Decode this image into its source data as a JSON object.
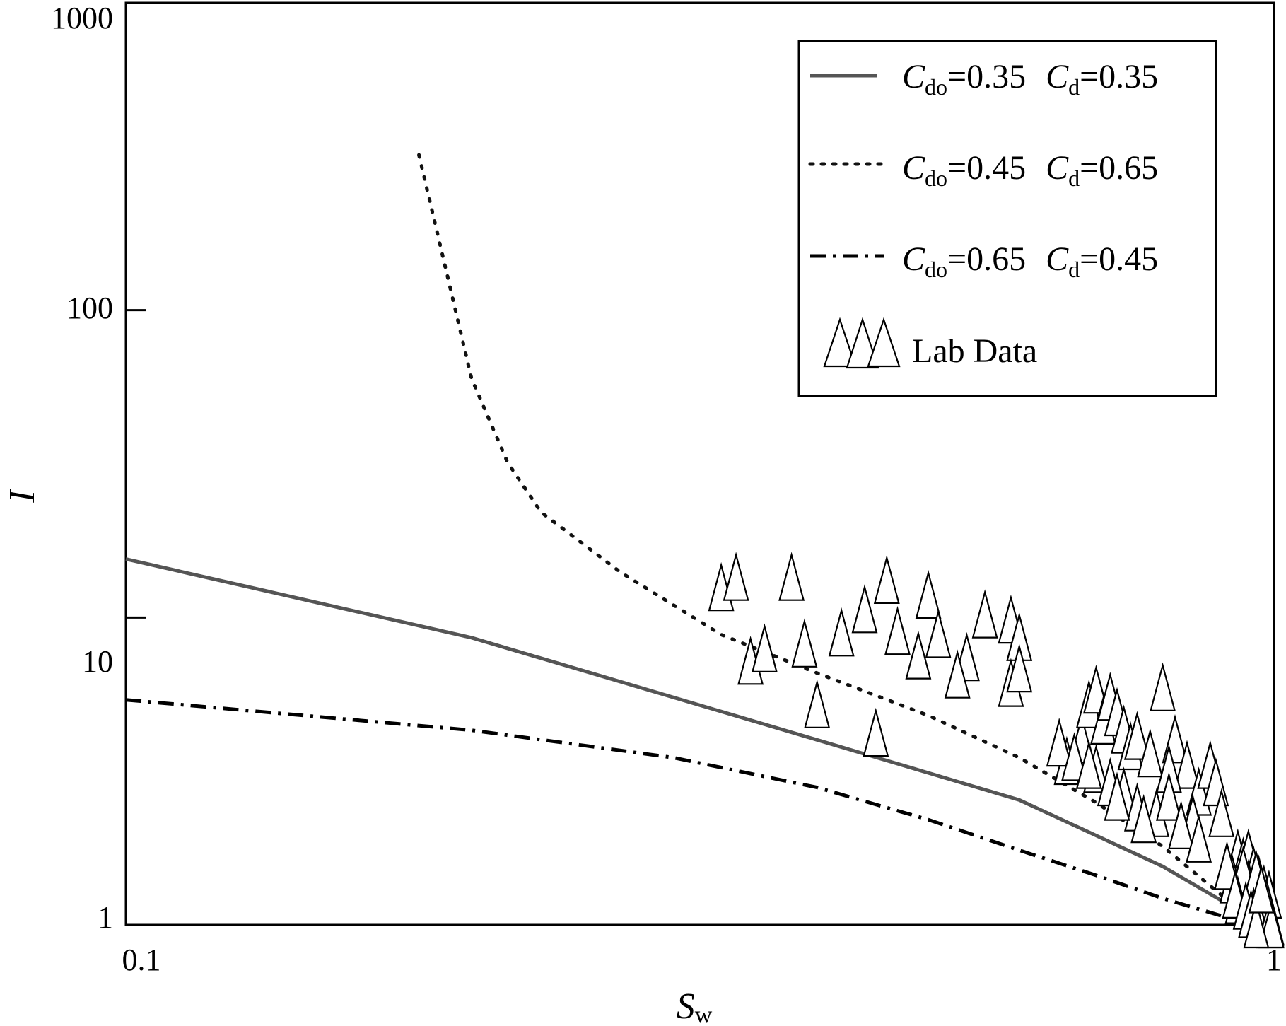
{
  "chart_data": {
    "type": "line",
    "x_scale": "log",
    "y_scale": "log",
    "xlim": [
      0.1,
      1
    ],
    "ylim": [
      1,
      1000
    ],
    "x_tick_labels": [
      "0.1",
      "1"
    ],
    "y_tick_labels": [
      "1",
      "10",
      "100",
      "1000"
    ],
    "xlabel": {
      "main": "S",
      "sub": "w"
    },
    "ylabel": "I",
    "colors": {
      "solid": "#555555",
      "dotted": "#111111",
      "dashdot": "#000000",
      "axes": "#000000"
    },
    "series": [
      {
        "name": "solid",
        "style": "solid",
        "legend": {
          "a": "C",
          "a_sub": "do",
          "a_val": "=0.35",
          "b": "C",
          "b_sub": "d",
          "b_val": "=0.35"
        },
        "x": [
          0.1,
          0.2,
          0.4,
          0.6,
          0.8,
          0.9
        ],
        "y": [
          15.5,
          8.6,
          4.0,
          2.55,
          1.55,
          1.2
        ]
      },
      {
        "name": "dotted",
        "style": "dotted",
        "legend": {
          "a": "C",
          "a_sub": "do",
          "a_val": "=0.45",
          "b": "C",
          "b_sub": "d",
          "b_val": "=0.65"
        },
        "x": [
          0.18,
          0.2,
          0.215,
          0.23,
          0.27,
          0.33,
          0.4,
          0.5,
          0.6,
          0.7,
          0.8,
          0.9
        ],
        "y": [
          320,
          60,
          32,
          22,
          14,
          8.8,
          6.6,
          4.8,
          3.5,
          2.5,
          1.8,
          1.25
        ]
      },
      {
        "name": "dashdot",
        "style": "dashdot",
        "legend": {
          "a": "C",
          "a_sub": "do",
          "a_val": "=0.65",
          "b": "C",
          "b_sub": "d",
          "b_val": "=0.45"
        },
        "x": [
          0.1,
          0.2,
          0.3,
          0.4,
          0.5,
          0.6,
          0.7,
          0.8,
          0.9
        ],
        "y": [
          5.4,
          4.3,
          3.5,
          2.8,
          2.2,
          1.75,
          1.45,
          1.22,
          1.07
        ]
      }
    ],
    "scatter": {
      "name": "Lab Data",
      "marker": "triangle",
      "x": [
        0.33,
        0.34,
        0.38,
        0.46,
        0.5,
        0.56,
        0.59,
        0.6,
        0.42,
        0.47,
        0.51,
        0.54,
        0.35,
        0.36,
        0.39,
        0.44,
        0.49,
        0.53,
        0.59,
        0.6,
        0.4,
        0.45,
        0.66,
        0.68,
        0.69,
        0.7,
        0.71,
        0.72,
        0.73,
        0.74,
        0.75,
        0.76,
        0.78,
        0.8,
        0.82,
        0.84,
        0.86,
        0.88,
        0.65,
        0.67,
        0.7,
        0.72,
        0.74,
        0.76,
        0.79,
        0.81,
        0.85,
        0.89,
        0.69,
        0.73,
        0.77,
        0.81,
        0.83,
        0.86,
        0.9,
        0.93,
        0.94,
        0.95,
        0.96,
        0.97,
        0.98,
        0.99,
        0.92,
        0.93,
        0.95,
        0.96,
        0.97,
        0.98,
        0.985,
        0.99,
        0.995,
        0.94,
        0.965,
        0.975,
        0.985,
        0.93,
        0.96,
        0.97,
        0.99,
        0.995,
        0.91,
        0.925,
        0.945,
        0.955,
        0.965,
        0.975
      ],
      "y": [
        12.5,
        13.5,
        13.5,
        13.2,
        11.8,
        10.2,
        9.8,
        8.6,
        8.9,
        9.0,
        8.8,
        7.4,
        7.2,
        7.9,
        8.2,
        10.6,
        7.5,
        6.5,
        6.1,
        6.8,
        5.2,
        4.2,
        3.4,
        4.0,
        5.2,
        5.8,
        4.6,
        5.5,
        4.9,
        4.3,
        3.8,
        4.1,
        3.6,
        5.9,
        4.0,
        3.3,
        2.7,
        3.3,
        3.9,
        3.5,
        3.2,
        2.9,
        2.7,
        2.4,
        2.3,
        3.2,
        2.2,
        2.9,
        3.3,
        2.6,
        2.2,
        2.6,
        2.1,
        1.9,
        2.3,
        1.7,
        1.6,
        1.7,
        1.5,
        1.4,
        1.3,
        1.25,
        1.4,
        1.3,
        1.35,
        1.2,
        1.15,
        1.12,
        1.08,
        1.05,
        1.02,
        1.5,
        1.45,
        1.28,
        1.18,
        1.2,
        1.1,
        1.02,
        1.0,
        1.0,
        1.55,
        1.25,
        1.15,
        1.08,
        1.0,
        1.3
      ]
    },
    "legend_position": "top-right"
  }
}
